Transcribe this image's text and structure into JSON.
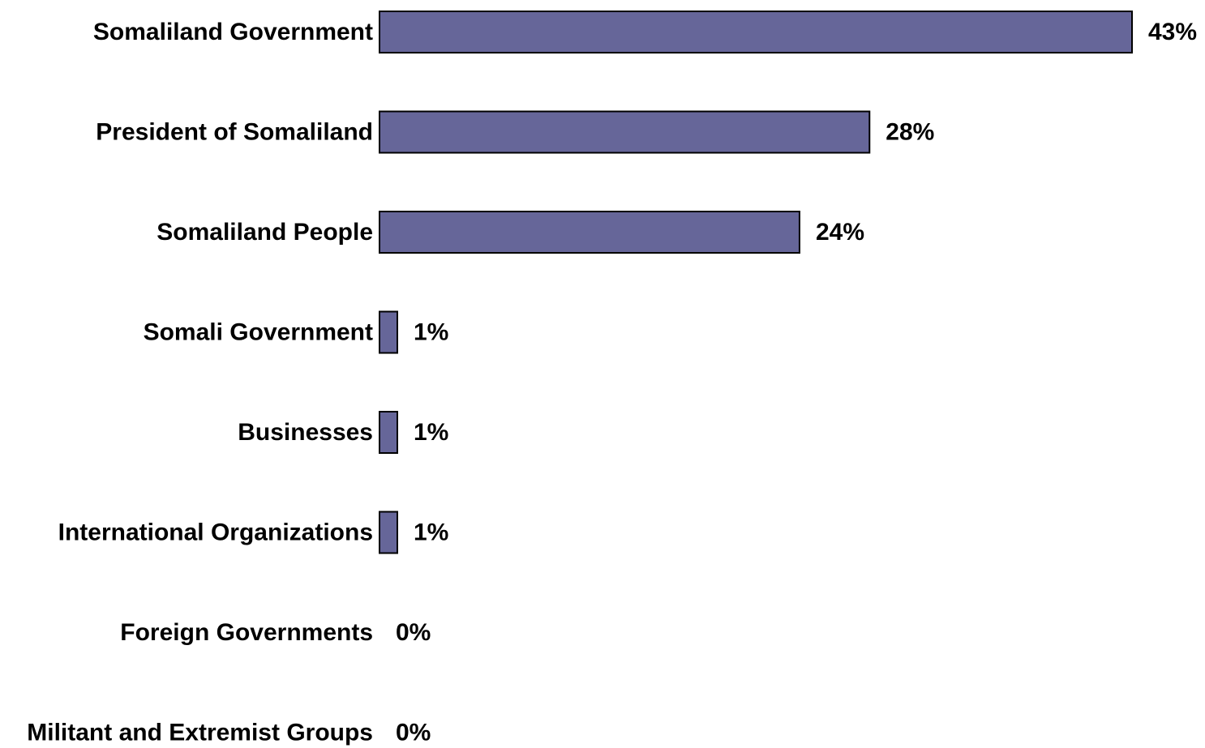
{
  "chart_data": {
    "type": "bar",
    "orientation": "horizontal",
    "categories": [
      "Somaliland Government",
      "President of Somaliland",
      "Somaliland People",
      "Somali Government",
      "Businesses",
      "International Organizations",
      "Foreign Governments",
      "Militant and Extremist Groups"
    ],
    "values": [
      43,
      28,
      24,
      1,
      1,
      1,
      0,
      0
    ],
    "value_labels": [
      "43%",
      "28%",
      "24%",
      "1%",
      "1%",
      "1%",
      "0%",
      "0%"
    ],
    "unit": "%",
    "xlim": [
      0,
      43
    ],
    "grid": false,
    "legend": "none",
    "colors": {
      "bar_fill": "#666699",
      "bar_stroke": "#000000",
      "text": "#000000",
      "background": "#ffffff"
    }
  }
}
